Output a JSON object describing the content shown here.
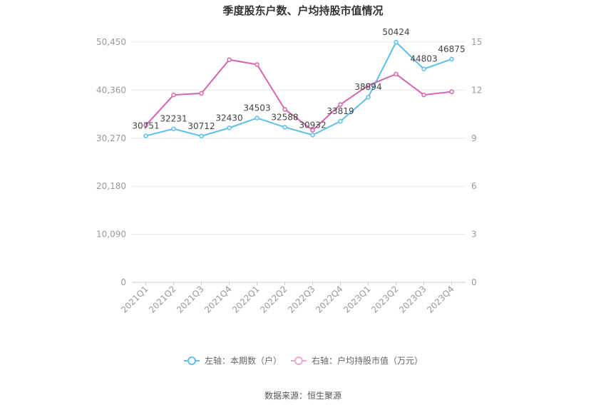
{
  "chart_data": {
    "type": "line",
    "title": "季度股东户数、户均持股市值情况",
    "categories": [
      "2021Q1",
      "2021Q2",
      "2021Q3",
      "2021Q4",
      "2022Q1",
      "2022Q2",
      "2022Q3",
      "2022Q4",
      "2023Q1",
      "2023Q2",
      "2023Q3",
      "2023Q4"
    ],
    "series": [
      {
        "name": "左轴：本期数（户）",
        "axis": "left",
        "color": "#5bc0eb",
        "values": [
          30751,
          32231,
          30712,
          32430,
          34503,
          32588,
          30932,
          33819,
          38894,
          50424,
          44803,
          46875
        ],
        "labels": [
          "30751",
          "32231",
          "30712",
          "32430",
          "34503",
          "32588",
          "30932",
          "33819",
          "38894",
          "50424",
          "44803",
          "46875"
        ]
      },
      {
        "name": "右轴：户均持股市值（万元）",
        "axis": "right",
        "color": "#d466b0",
        "values": [
          9.8,
          11.7,
          11.8,
          13.9,
          13.6,
          10.8,
          9.5,
          11.1,
          12.3,
          13.0,
          11.7,
          11.9
        ]
      }
    ],
    "left_axis": {
      "ticks": [
        "0",
        "10,090",
        "20,180",
        "30,270",
        "40,360",
        "50,450"
      ],
      "tick_values": [
        0,
        10090,
        20180,
        30270,
        40360,
        50450
      ],
      "ylim": [
        0,
        50450
      ]
    },
    "right_axis": {
      "ticks": [
        "0",
        "3",
        "6",
        "9",
        "12",
        "15"
      ],
      "tick_values": [
        0,
        3,
        6,
        9,
        12,
        15
      ],
      "ylim": [
        0,
        15
      ]
    },
    "grid": true,
    "legend_position": "bottom"
  },
  "source": "数据来源：恒生聚源"
}
